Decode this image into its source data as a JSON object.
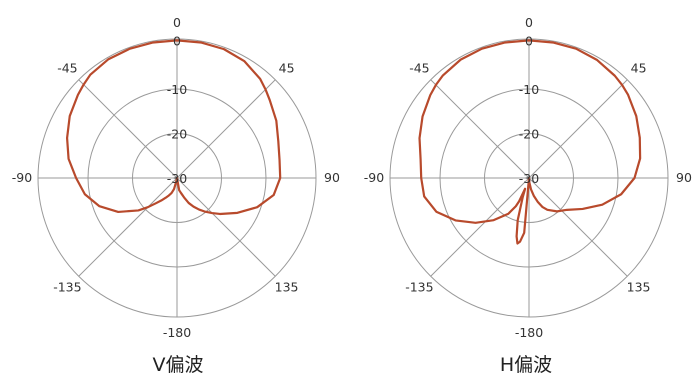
{
  "chart_data": [
    {
      "type": "polar-line",
      "title": "V偏波",
      "theta_ticks": [
        "0",
        "45",
        "90",
        "135",
        "-180",
        "-135",
        "-90",
        "-45"
      ],
      "theta_tick_deg": [
        0,
        45,
        90,
        135,
        180,
        -135,
        -90,
        -45
      ],
      "r_ticks": [
        "0",
        "-10",
        "-20",
        "-30"
      ],
      "r_tick_values": [
        0,
        -10,
        -20,
        -30
      ],
      "rlim": [
        -30,
        0
      ],
      "angular_direction": "clockwise",
      "zero_location": "top",
      "grid": true,
      "line_color": "#b84a2c",
      "series": [
        {
          "theta_deg": [
            -180,
            -170,
            -165,
            -160,
            -155,
            -150,
            -145,
            -140,
            -135,
            -130,
            -120,
            -110,
            -100,
            -90,
            -80,
            -70,
            -60,
            -50,
            -45,
            -40,
            -30,
            -20,
            -10,
            0,
            10,
            20,
            30,
            40,
            45,
            50,
            60,
            70,
            80,
            90,
            100,
            110,
            120,
            130,
            135,
            140,
            145,
            150,
            155,
            160,
            165,
            170,
            180
          ],
          "r_db": [
            -30,
            -29.5,
            -27.5,
            -26.5,
            -25.8,
            -25.0,
            -24.0,
            -22.8,
            -21.0,
            -19.0,
            -15.2,
            -12.0,
            -9.6,
            -8.0,
            -6.0,
            -4.5,
            -3.0,
            -1.8,
            -1.2,
            -0.6,
            -0.1,
            0,
            0,
            0,
            0,
            -0.1,
            -0.6,
            -1.8,
            -2.7,
            -3.6,
            -5.0,
            -6.5,
            -7.3,
            -7.5,
            -8.6,
            -11.4,
            -14.8,
            -17.8,
            -19.2,
            -20.4,
            -21.6,
            -22.8,
            -24.0,
            -25.5,
            -26.6,
            -27.3,
            -30
          ]
        }
      ]
    },
    {
      "type": "polar-line",
      "title": "H偏波",
      "theta_ticks": [
        "0",
        "45",
        "90",
        "135",
        "-180",
        "-135",
        "-90",
        "-45"
      ],
      "theta_tick_deg": [
        0,
        45,
        90,
        135,
        180,
        -135,
        -90,
        -45
      ],
      "r_ticks": [
        "0",
        "-10",
        "-20",
        "-30"
      ],
      "r_tick_values": [
        0,
        -10,
        -20,
        -30
      ],
      "rlim": [
        -30,
        0
      ],
      "angular_direction": "clockwise",
      "zero_location": "top",
      "grid": true,
      "line_color": "#b84a2c",
      "series": [
        {
          "theta_deg": [
            -180,
            -175,
            -172,
            -170,
            -168,
            -165,
            -162,
            -160,
            -157,
            -155,
            -150,
            -140,
            -130,
            -120,
            -110,
            -100,
            -90,
            -80,
            -70,
            -60,
            -50,
            -45,
            -40,
            -30,
            -20,
            -10,
            0,
            10,
            20,
            30,
            40,
            45,
            50,
            60,
            70,
            80,
            90,
            100,
            110,
            120,
            130,
            140,
            150,
            155,
            160,
            165,
            170,
            175,
            180
          ],
          "r_db": [
            -30,
            -18.0,
            -16.0,
            -15.5,
            -17.0,
            -20.5,
            -25.5,
            -27.5,
            -24.5,
            -23.2,
            -21.0,
            -18.0,
            -14.8,
            -11.5,
            -8.5,
            -6.8,
            -6.5,
            -6.0,
            -4.6,
            -3.2,
            -1.9,
            -1.3,
            -0.8,
            -0.2,
            0,
            0,
            0,
            0,
            0,
            -0.3,
            -0.9,
            -1.3,
            -1.8,
            -3.0,
            -4.3,
            -5.4,
            -7.0,
            -9.6,
            -13.0,
            -16.5,
            -19.2,
            -20.5,
            -22.0,
            -23.0,
            -24.5,
            -26.0,
            -27.5,
            -29.0,
            -30
          ]
        }
      ]
    }
  ],
  "captions": {
    "left": "V偏波",
    "right": "H偏波"
  }
}
